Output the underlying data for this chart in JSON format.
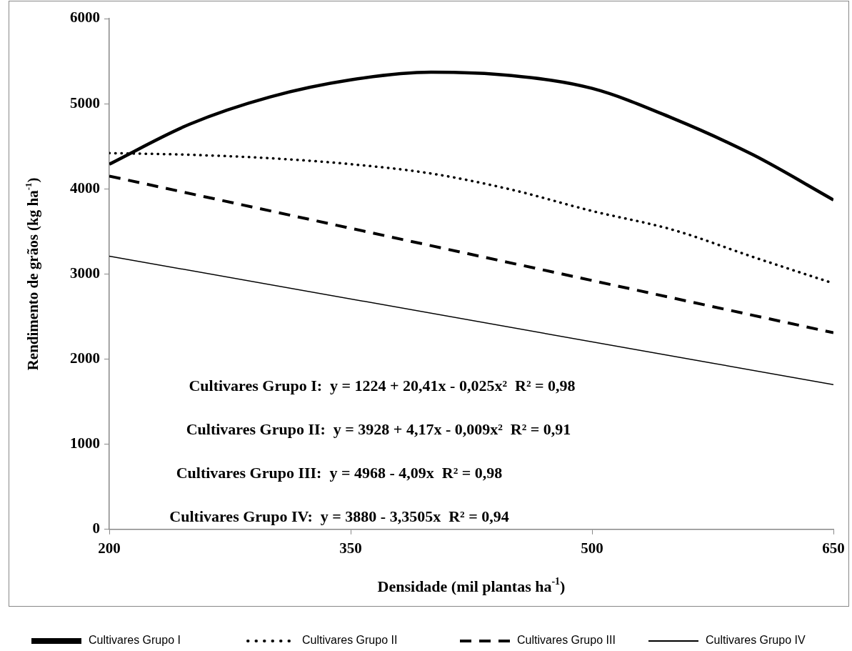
{
  "chart_data": {
    "type": "line",
    "xlabel": "Densidade (mil plantas ha$^{-1}$)",
    "ylabel": "Rendimento de grãos (kg ha$^{-1}$)",
    "xlim": [
      200,
      650
    ],
    "xticks": [
      200,
      350,
      500,
      650
    ],
    "ylim": [
      0,
      6000
    ],
    "yticks": [
      0,
      1000,
      2000,
      3000,
      4000,
      5000,
      6000
    ],
    "grid": false,
    "legend": "bottom",
    "marker": "none",
    "series": [
      {
        "name": "Cultivares Grupo I",
        "color": "#000000",
        "line_style": "solid",
        "x": [
          200,
          250,
          300,
          350,
          400,
          450,
          500,
          550,
          600,
          650
        ],
        "values": [
          4290,
          4760,
          5080,
          5280,
          5370,
          5330,
          5180,
          4830,
          4400,
          3870
        ]
      },
      {
        "name": "Cultivares Grupo II",
        "color": "#000000",
        "line_style": "dotted",
        "x": [
          200,
          250,
          300,
          350,
          400,
          450,
          500,
          550,
          600,
          650
        ],
        "values": [
          4420,
          4400,
          4360,
          4290,
          4180,
          3990,
          3740,
          3520,
          3200,
          2890
        ]
      },
      {
        "name": "Cultivares Grupo III",
        "color": "#000000",
        "line_style": "dashed",
        "x": [
          200,
          650
        ],
        "values": [
          4150,
          2310
        ]
      },
      {
        "name": "Cultivares Grupo IV",
        "color": "#000000",
        "line_style": "solid",
        "x": [
          200,
          650
        ],
        "values": [
          3210,
          1700
        ]
      }
    ],
    "annotations": [
      "Cultivares Grupo I:  y = 1224 + 20,41x - 0,025x²  R² = 0,98",
      "Cultivares Grupo II:  y = 3928 + 4,17x - 0,009x²  R² = 0,91",
      "Cultivares Grupo III:  y = 4968 - 4,09x  R² = 0,98",
      "Cultivares Grupo IV:  y = 3880 - 3,3505x  R² = 0,94"
    ]
  }
}
